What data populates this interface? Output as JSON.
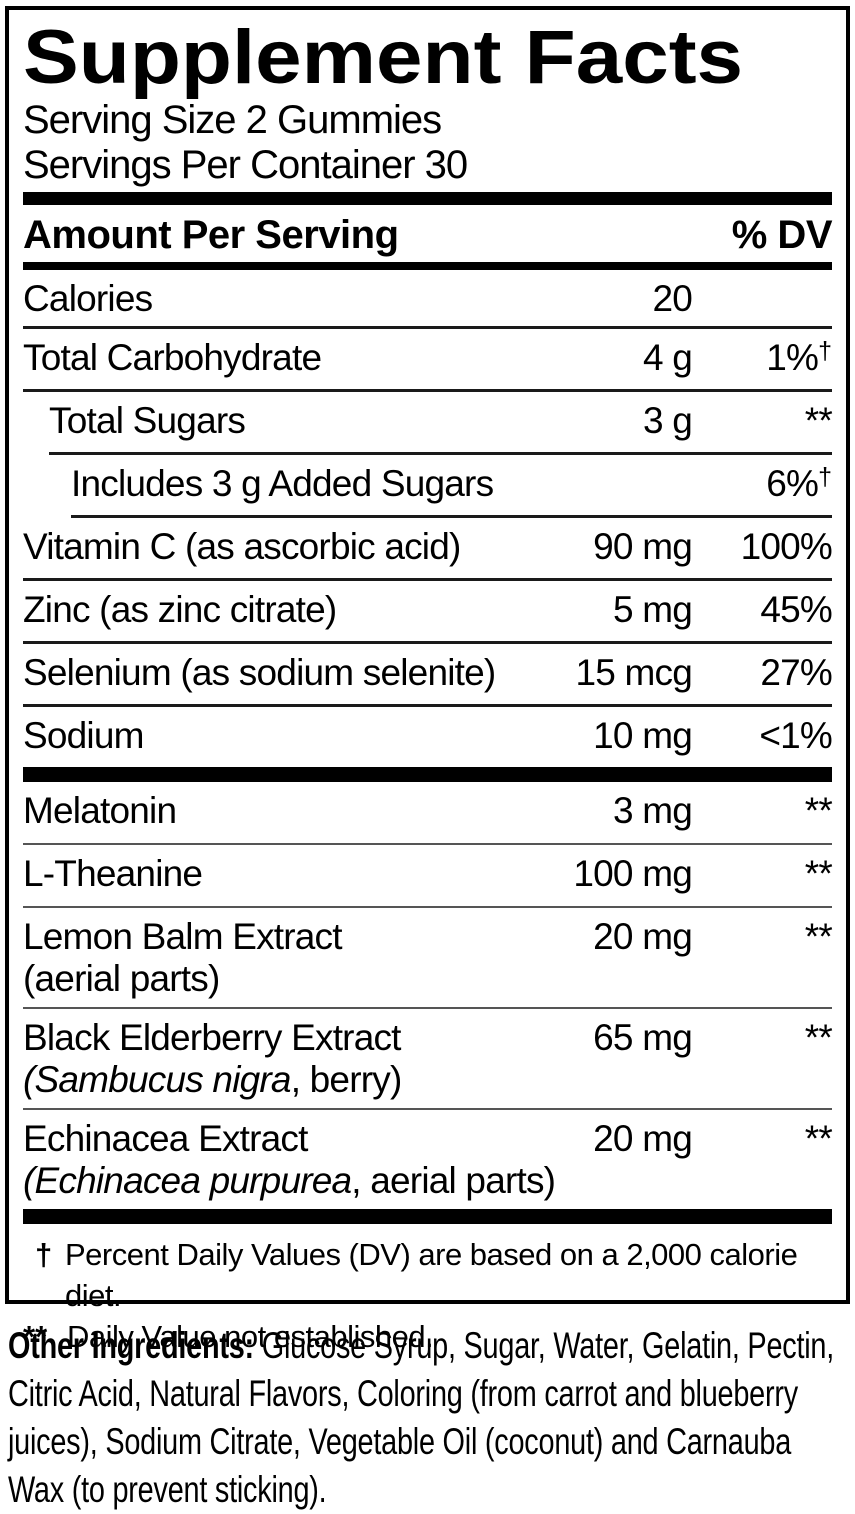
{
  "colors": {
    "text": "#000000",
    "background": "#ffffff",
    "rule": "#000000"
  },
  "label": {
    "title": "Supplement Facts",
    "serving_size": "Serving Size 2 Gummies",
    "servings_per_container": "Servings Per Container 30",
    "header": {
      "amount": "Amount Per Serving",
      "dv": "% DV"
    },
    "rows": [
      {
        "name": "Calories",
        "amount": "20",
        "dv": "",
        "dv_sup": ""
      },
      {
        "name": "Total Carbohydrate",
        "amount": "4 g",
        "dv": "1%",
        "dv_sup": "†"
      },
      {
        "name": "Total Sugars",
        "amount": "3 g",
        "dv": "**",
        "dv_sup": ""
      },
      {
        "name": "Includes 3 g Added Sugars",
        "amount": "",
        "dv": "6%",
        "dv_sup": "†"
      },
      {
        "name": "Vitamin C (as ascorbic acid)",
        "amount": "90 mg",
        "dv": "100%",
        "dv_sup": ""
      },
      {
        "name": "Zinc (as zinc citrate)",
        "amount": "5 mg",
        "dv": "45%",
        "dv_sup": ""
      },
      {
        "name": "Selenium (as sodium selenite)",
        "amount": "15 mcg",
        "dv": "27%",
        "dv_sup": ""
      },
      {
        "name": "Sodium",
        "amount": "10 mg",
        "dv": "<1%",
        "dv_sup": ""
      },
      {
        "name": "Melatonin",
        "amount": "3 mg",
        "dv": "**",
        "dv_sup": ""
      },
      {
        "name": "L-Theanine",
        "amount": "100 mg",
        "dv": "**",
        "dv_sup": ""
      },
      {
        "name": "Lemon Balm Extract",
        "line2": {
          "italic": "",
          "rest": "(aerial parts)"
        },
        "amount": "20 mg",
        "dv": "**",
        "dv_sup": ""
      },
      {
        "name": "Black Elderberry Extract",
        "line2": {
          "italic": "(Sambucus nigra",
          "rest": ", berry)"
        },
        "amount": "65 mg",
        "dv": "**",
        "dv_sup": ""
      },
      {
        "name": "Echinacea Extract",
        "line2": {
          "italic": "(Echinacea purpurea",
          "rest": ", aerial parts)"
        },
        "amount": "20 mg",
        "dv": "**",
        "dv_sup": ""
      }
    ],
    "footnotes": [
      {
        "marker": "†",
        "text": "Percent Daily Values (DV) are based on a 2,000 calorie diet."
      },
      {
        "marker": "**",
        "text": "Daily Value not established."
      }
    ]
  },
  "other_ingredients": {
    "label": "Other Ingredients:",
    "text": "Glucose Syrup, Sugar, Water, Gelatin, Pectin, Citric Acid, Natural Flavors, Coloring (from carrot and blueberry juices), Sodium Citrate, Vegetable Oil (coconut) and Carnauba Wax (to prevent sticking)."
  }
}
